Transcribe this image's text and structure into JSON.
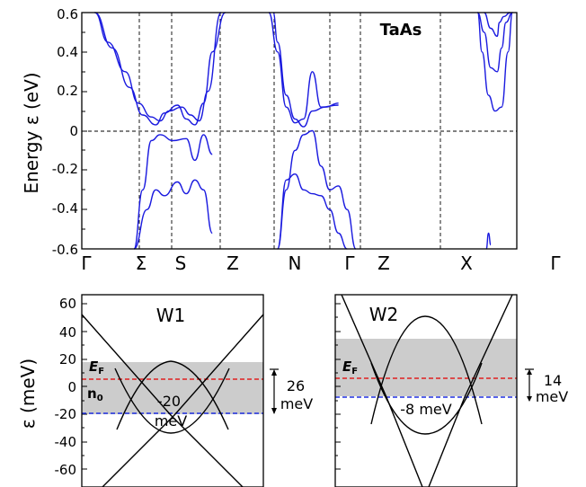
{
  "chart_data": [
    {
      "type": "line",
      "title": "TaAs",
      "ylabel": "Energy ε (eV)",
      "ylim": [
        -0.6,
        0.6
      ],
      "yticks": [
        "0.6",
        "0.4",
        "0.2",
        "0",
        "-0.2",
        "-0.4",
        "-0.6"
      ],
      "kpath": [
        "Γ",
        "Σ",
        "S",
        "Z",
        "N",
        "Γ",
        "Z",
        "X",
        "Γ"
      ],
      "grid": "dashed vertical lines at high-symmetry points; dashed line at 0",
      "colors": {
        "bands": "#1a1adf"
      },
      "series": [
        {
          "x": [
            0.03,
            0.06,
            0.1,
            0.13,
            0.16,
            0.18,
            0.2,
            0.23,
            0.25,
            0.27,
            0.29,
            0.32
          ],
          "y": [
            0.62,
            0.45,
            0.3,
            0.14,
            0.07,
            0.05,
            0.1,
            0.12,
            0.08,
            0.05,
            0.2,
            0.62
          ]
        },
        {
          "x": [
            0.03,
            0.07,
            0.11,
            0.14,
            0.17,
            0.19,
            0.22,
            0.24,
            0.26,
            0.28,
            0.3,
            0.33
          ],
          "y": [
            0.62,
            0.42,
            0.22,
            0.08,
            0.03,
            0.09,
            0.13,
            0.06,
            0.03,
            0.14,
            0.4,
            0.62
          ]
        },
        {
          "x": [
            0.12,
            0.14,
            0.16,
            0.18,
            0.21,
            0.24,
            0.26,
            0.28,
            0.3
          ],
          "y": [
            -0.6,
            -0.3,
            -0.05,
            -0.02,
            -0.05,
            -0.04,
            -0.15,
            -0.02,
            -0.12
          ]
        },
        {
          "x": [
            0.12,
            0.15,
            0.17,
            0.19,
            0.22,
            0.24,
            0.26,
            0.28,
            0.3
          ],
          "y": [
            -0.6,
            -0.4,
            -0.3,
            -0.33,
            -0.26,
            -0.32,
            -0.25,
            -0.3,
            -0.52
          ]
        },
        {
          "x": [
            0.44,
            0.45,
            0.47,
            0.49,
            0.51,
            0.53,
            0.56,
            0.59
          ],
          "y": [
            0.62,
            0.45,
            0.18,
            0.06,
            0.02,
            0.1,
            0.12,
            0.14
          ]
        },
        {
          "x": [
            0.43,
            0.45,
            0.47,
            0.49,
            0.51,
            0.53,
            0.55,
            0.59
          ],
          "y": [
            0.62,
            0.4,
            0.12,
            0.04,
            0.06,
            0.3,
            0.12,
            0.13
          ]
        },
        {
          "x": [
            0.45,
            0.47,
            0.49,
            0.51,
            0.53,
            0.55,
            0.57,
            0.59,
            0.61,
            0.63
          ],
          "y": [
            -0.6,
            -0.3,
            -0.1,
            -0.02,
            0.0,
            -0.18,
            -0.3,
            -0.28,
            -0.4,
            -0.6
          ]
        },
        {
          "x": [
            0.45,
            0.47,
            0.49,
            0.51,
            0.53,
            0.55,
            0.57,
            0.59,
            0.61
          ],
          "y": [
            -0.6,
            -0.25,
            -0.22,
            -0.3,
            -0.32,
            -0.33,
            -0.4,
            -0.52,
            -0.6
          ]
        },
        {
          "x": [
            0.91,
            0.92,
            0.935,
            0.95,
            0.965,
            0.98,
            0.99
          ],
          "y": [
            0.62,
            0.4,
            0.18,
            0.1,
            0.12,
            0.4,
            0.62
          ]
        },
        {
          "x": [
            0.91,
            0.925,
            0.94,
            0.955,
            0.965,
            0.975,
            0.99
          ],
          "y": [
            0.62,
            0.5,
            0.32,
            0.3,
            0.42,
            0.55,
            0.62
          ]
        },
        {
          "x": [
            0.925,
            0.94,
            0.955,
            0.96,
            0.97,
            0.985
          ],
          "y": [
            0.62,
            0.52,
            0.48,
            0.55,
            0.58,
            0.62
          ]
        },
        {
          "x": [
            0.93,
            0.935,
            0.94
          ],
          "y": [
            -0.6,
            -0.52,
            -0.58
          ]
        }
      ]
    },
    {
      "type": "line",
      "title": "W1",
      "ylabel": "ε (meV)",
      "ylim": [
        -70,
        65
      ],
      "yticks": [
        "60",
        "40",
        "20",
        "0",
        "-20",
        "-40",
        "-60"
      ],
      "band_range": [
        -20,
        18
      ],
      "EF": 5,
      "n0": -20,
      "label_EF": "E",
      "label_EF_sub": "F",
      "label_n0": "n",
      "label_n0_sub": "0",
      "annot_val": "-20",
      "annot_unit": "meV",
      "side_val": "26",
      "side_unit": "meV",
      "colors": {
        "ef": "#e02020",
        "n0": "#2030e0",
        "shade": "#cccccc"
      },
      "series": [
        {
          "x": [
            -1.0,
            -0.6,
            -0.2,
            0.0,
            0.2,
            0.6,
            1.0
          ],
          "y": [
            45,
            18,
            -5,
            18,
            -5,
            18,
            45
          ]
        }
      ]
    },
    {
      "type": "line",
      "title": "W2",
      "ylim": [
        -70,
        65
      ],
      "band_range": [
        -8,
        34
      ],
      "EF": 5,
      "n0": -8,
      "label_EF": "E",
      "label_EF_sub": "F",
      "annot": "-8 meV",
      "side_val": "14",
      "side_unit": "meV",
      "colors": {
        "ef": "#e02020",
        "n0": "#2030e0",
        "shade": "#cccccc"
      }
    }
  ]
}
